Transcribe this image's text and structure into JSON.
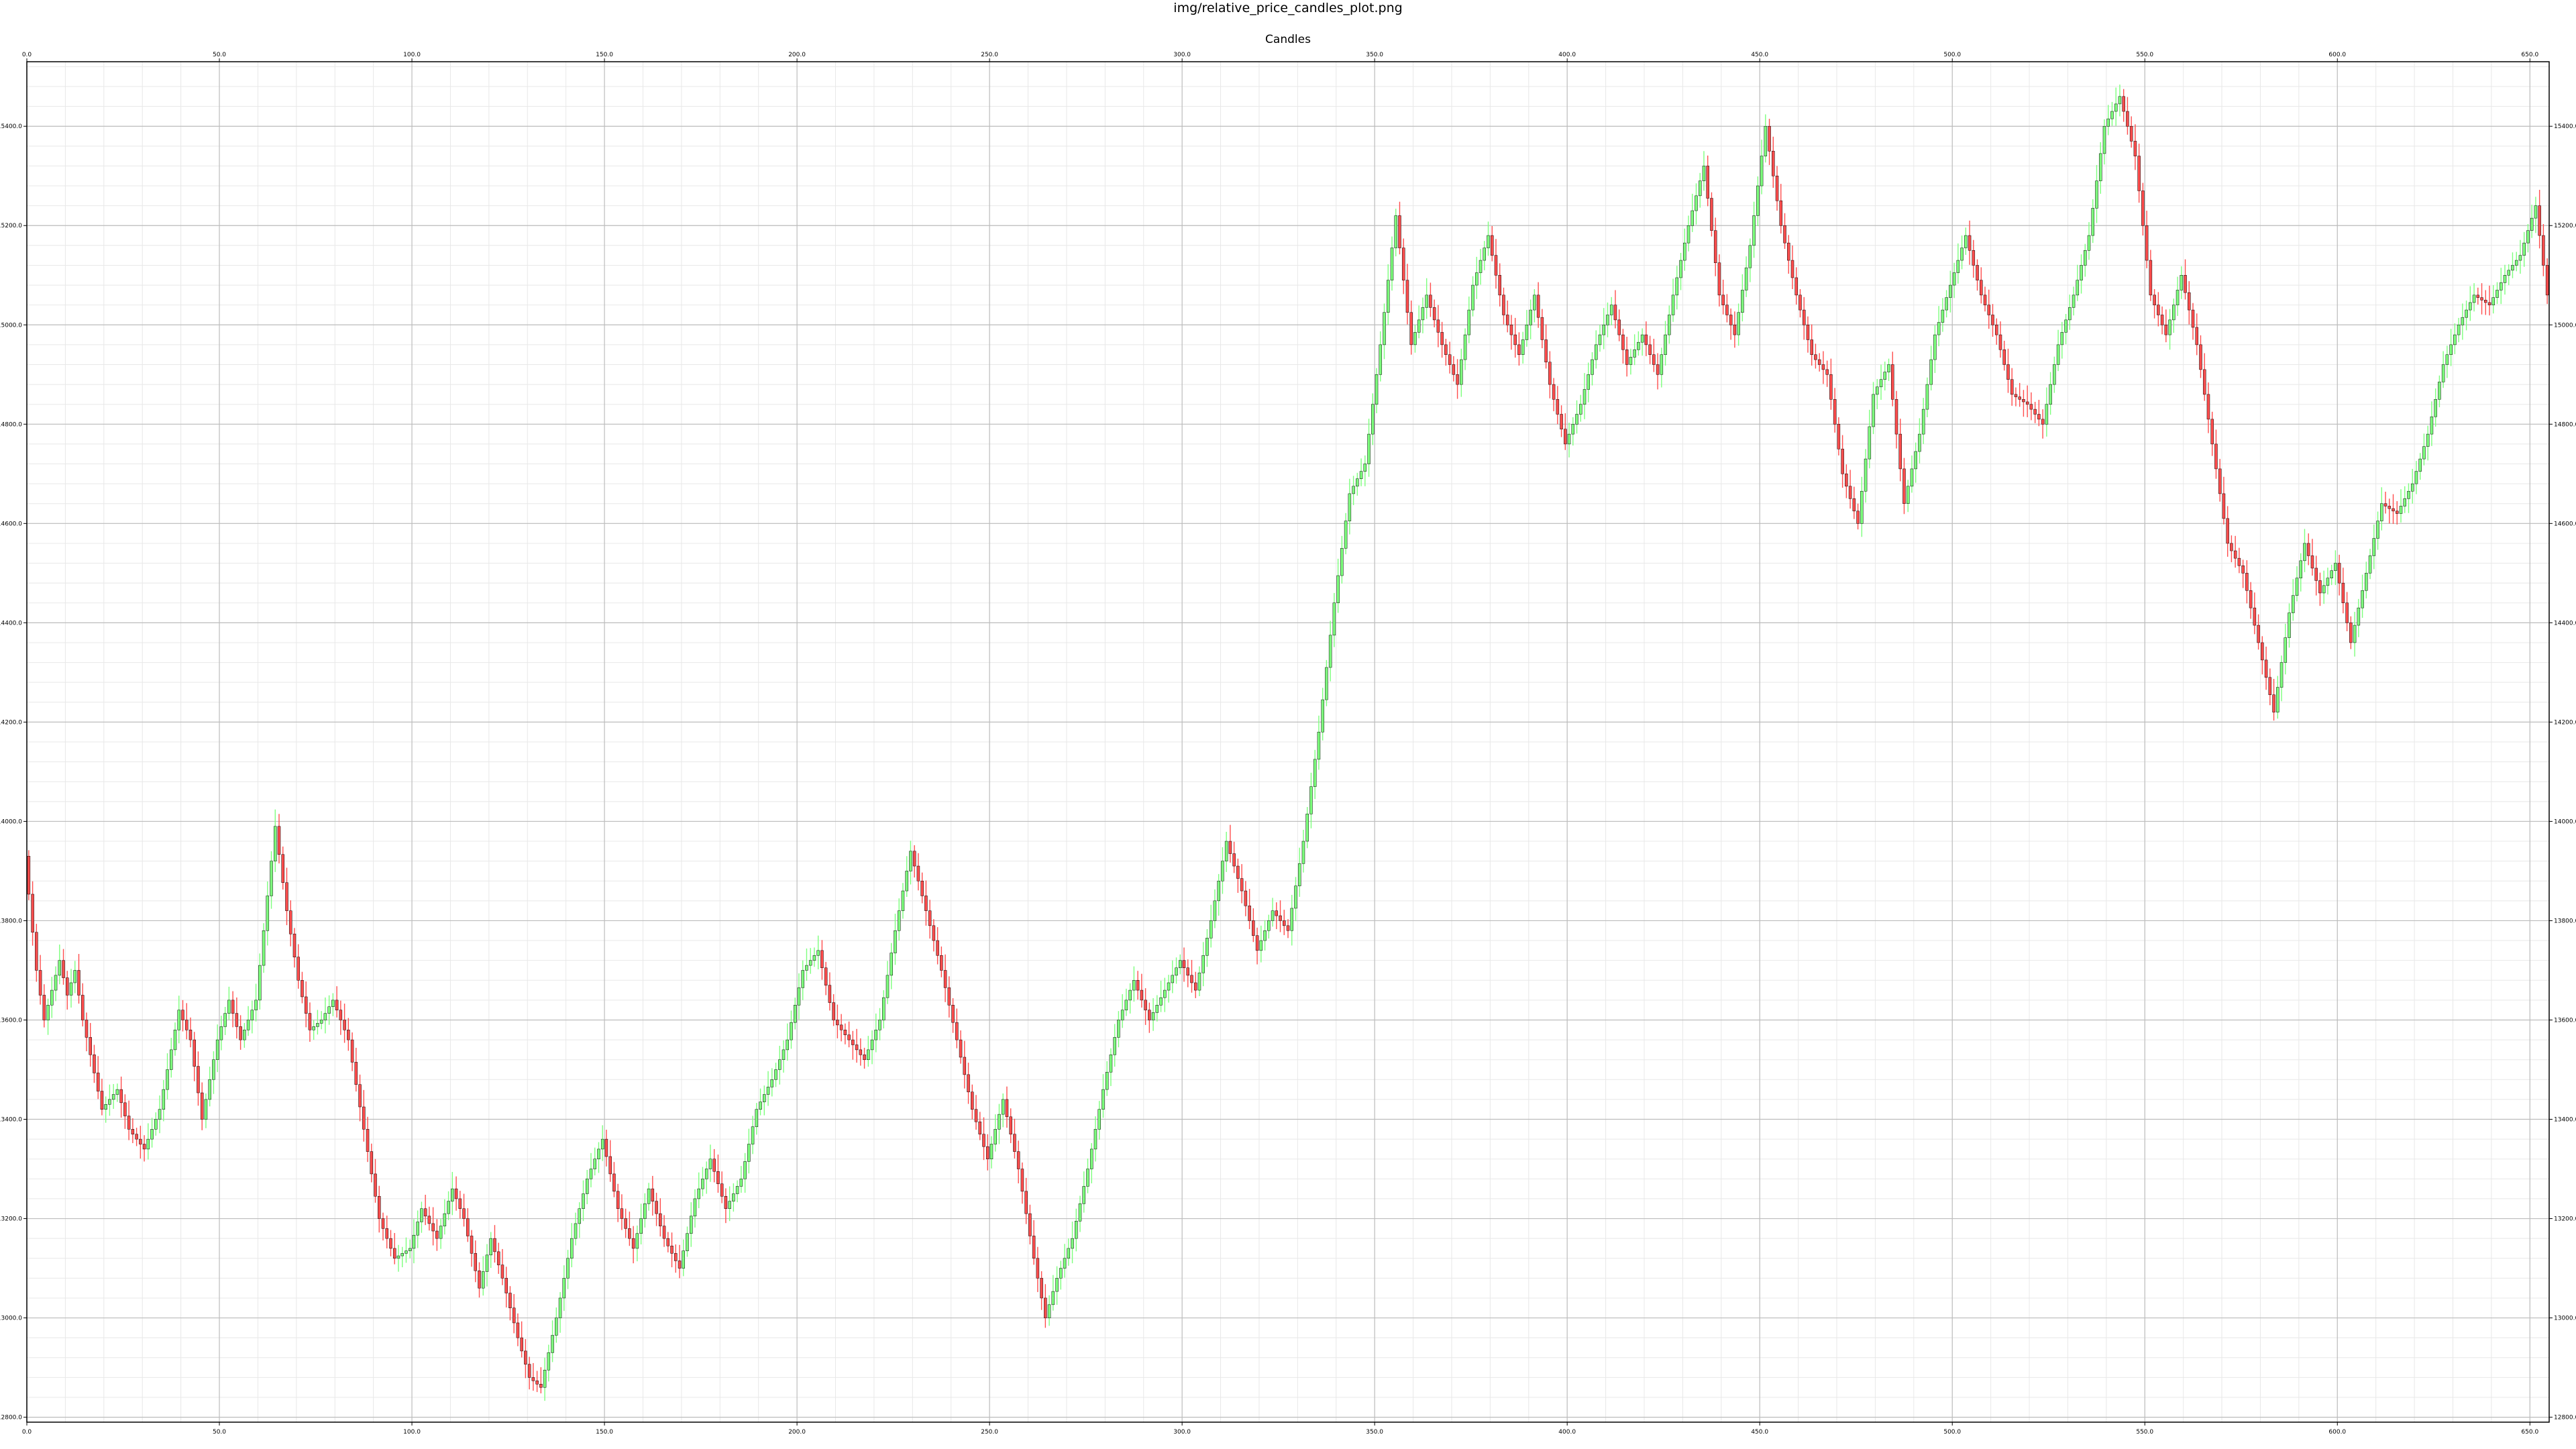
{
  "figure_title": "img/relative_price_candles_plot.png",
  "chart_data": {
    "type": "candlestick",
    "title": "Candles",
    "xlim": [
      0,
      655
    ],
    "ylim": [
      12790,
      15530
    ],
    "x_ticks": [
      0,
      50,
      100,
      150,
      200,
      250,
      300,
      350,
      400,
      450,
      500,
      550,
      600,
      650
    ],
    "x_tick_labels": [
      "0.0",
      "50.0",
      "100.0",
      "150.0",
      "200.0",
      "250.0",
      "300.0",
      "350.0",
      "400.0",
      "450.0",
      "500.0",
      "550.0",
      "600.0",
      "650.0"
    ],
    "y_ticks": [
      12800,
      13000,
      13200,
      13400,
      13600,
      13800,
      14000,
      14200,
      14400,
      14600,
      14800,
      15000,
      15200,
      15400
    ],
    "y_tick_labels": [
      "12800.0",
      "13000.0",
      "13200.0",
      "13400.0",
      "13600.0",
      "13800.0",
      "14000.0",
      "14200.0",
      "14400.0",
      "14600.0",
      "14800.0",
      "15000.0",
      "15200.0",
      "15400.0"
    ],
    "grid": true,
    "minor_grid": true,
    "ticks_on_all_sides": true,
    "colors": {
      "up": "#7dff7d",
      "down": "#ff4d4d",
      "body_edge": "#000000",
      "grid_major": "#bdbdbd",
      "grid_minor": "#e8e8e8"
    },
    "price_path": [
      [
        0,
        13930
      ],
      [
        3,
        13700
      ],
      [
        5,
        13600
      ],
      [
        9,
        13720
      ],
      [
        11,
        13650
      ],
      [
        13,
        13700
      ],
      [
        15,
        13600
      ],
      [
        17,
        13530
      ],
      [
        20,
        13420
      ],
      [
        24,
        13460
      ],
      [
        27,
        13380
      ],
      [
        31,
        13340
      ],
      [
        35,
        13420
      ],
      [
        40,
        13620
      ],
      [
        43,
        13560
      ],
      [
        46,
        13400
      ],
      [
        50,
        13560
      ],
      [
        53,
        13640
      ],
      [
        56,
        13560
      ],
      [
        60,
        13640
      ],
      [
        63,
        13850
      ],
      [
        65,
        13990
      ],
      [
        68,
        13820
      ],
      [
        71,
        13680
      ],
      [
        74,
        13580
      ],
      [
        77,
        13600
      ],
      [
        80,
        13640
      ],
      [
        84,
        13560
      ],
      [
        88,
        13380
      ],
      [
        92,
        13200
      ],
      [
        96,
        13120
      ],
      [
        100,
        13140
      ],
      [
        103,
        13220
      ],
      [
        107,
        13160
      ],
      [
        111,
        13260
      ],
      [
        114,
        13200
      ],
      [
        118,
        13060
      ],
      [
        121,
        13160
      ],
      [
        124,
        13080
      ],
      [
        128,
        12960
      ],
      [
        131,
        12880
      ],
      [
        134,
        12860
      ],
      [
        138,
        13000
      ],
      [
        142,
        13160
      ],
      [
        146,
        13280
      ],
      [
        150,
        13360
      ],
      [
        154,
        13220
      ],
      [
        158,
        13140
      ],
      [
        162,
        13260
      ],
      [
        166,
        13160
      ],
      [
        170,
        13100
      ],
      [
        174,
        13240
      ],
      [
        178,
        13320
      ],
      [
        182,
        13220
      ],
      [
        186,
        13280
      ],
      [
        190,
        13420
      ],
      [
        194,
        13480
      ],
      [
        198,
        13560
      ],
      [
        202,
        13700
      ],
      [
        206,
        13740
      ],
      [
        210,
        13600
      ],
      [
        214,
        13560
      ],
      [
        218,
        13520
      ],
      [
        222,
        13600
      ],
      [
        226,
        13780
      ],
      [
        230,
        13940
      ],
      [
        234,
        13820
      ],
      [
        238,
        13700
      ],
      [
        242,
        13560
      ],
      [
        246,
        13420
      ],
      [
        250,
        13320
      ],
      [
        254,
        13440
      ],
      [
        258,
        13300
      ],
      [
        262,
        13120
      ],
      [
        265,
        13000
      ],
      [
        268,
        13080
      ],
      [
        272,
        13160
      ],
      [
        276,
        13300
      ],
      [
        280,
        13460
      ],
      [
        284,
        13600
      ],
      [
        288,
        13680
      ],
      [
        292,
        13600
      ],
      [
        296,
        13660
      ],
      [
        300,
        13720
      ],
      [
        304,
        13660
      ],
      [
        308,
        13800
      ],
      [
        312,
        13960
      ],
      [
        316,
        13860
      ],
      [
        320,
        13740
      ],
      [
        324,
        13820
      ],
      [
        328,
        13780
      ],
      [
        332,
        13960
      ],
      [
        336,
        14180
      ],
      [
        340,
        14440
      ],
      [
        344,
        14660
      ],
      [
        348,
        14720
      ],
      [
        352,
        14960
      ],
      [
        356,
        15220
      ],
      [
        360,
        14960
      ],
      [
        364,
        15060
      ],
      [
        368,
        14960
      ],
      [
        372,
        14880
      ],
      [
        376,
        15080
      ],
      [
        380,
        15180
      ],
      [
        384,
        15020
      ],
      [
        388,
        14940
      ],
      [
        392,
        15060
      ],
      [
        396,
        14880
      ],
      [
        400,
        14760
      ],
      [
        404,
        14840
      ],
      [
        408,
        14960
      ],
      [
        412,
        15040
      ],
      [
        416,
        14920
      ],
      [
        420,
        14980
      ],
      [
        424,
        14900
      ],
      [
        428,
        15060
      ],
      [
        432,
        15200
      ],
      [
        436,
        15320
      ],
      [
        440,
        15060
      ],
      [
        444,
        14980
      ],
      [
        448,
        15160
      ],
      [
        452,
        15400
      ],
      [
        456,
        15200
      ],
      [
        460,
        15060
      ],
      [
        464,
        14940
      ],
      [
        468,
        14900
      ],
      [
        472,
        14700
      ],
      [
        476,
        14600
      ],
      [
        480,
        14860
      ],
      [
        484,
        14920
      ],
      [
        488,
        14640
      ],
      [
        492,
        14780
      ],
      [
        496,
        14980
      ],
      [
        500,
        15080
      ],
      [
        504,
        15180
      ],
      [
        508,
        15060
      ],
      [
        512,
        14980
      ],
      [
        516,
        14860
      ],
      [
        520,
        14840
      ],
      [
        524,
        14800
      ],
      [
        528,
        14960
      ],
      [
        532,
        15060
      ],
      [
        536,
        15180
      ],
      [
        540,
        15400
      ],
      [
        544,
        15460
      ],
      [
        548,
        15340
      ],
      [
        552,
        15060
      ],
      [
        556,
        14980
      ],
      [
        560,
        15100
      ],
      [
        564,
        14960
      ],
      [
        568,
        14760
      ],
      [
        572,
        14560
      ],
      [
        576,
        14500
      ],
      [
        580,
        14360
      ],
      [
        584,
        14220
      ],
      [
        588,
        14420
      ],
      [
        592,
        14560
      ],
      [
        596,
        14460
      ],
      [
        600,
        14520
      ],
      [
        604,
        14360
      ],
      [
        608,
        14500
      ],
      [
        612,
        14640
      ],
      [
        616,
        14620
      ],
      [
        620,
        14680
      ],
      [
        624,
        14780
      ],
      [
        628,
        14920
      ],
      [
        632,
        15000
      ],
      [
        636,
        15060
      ],
      [
        640,
        15040
      ],
      [
        644,
        15100
      ],
      [
        648,
        15140
      ],
      [
        652,
        15240
      ],
      [
        655,
        15060
      ]
    ]
  }
}
